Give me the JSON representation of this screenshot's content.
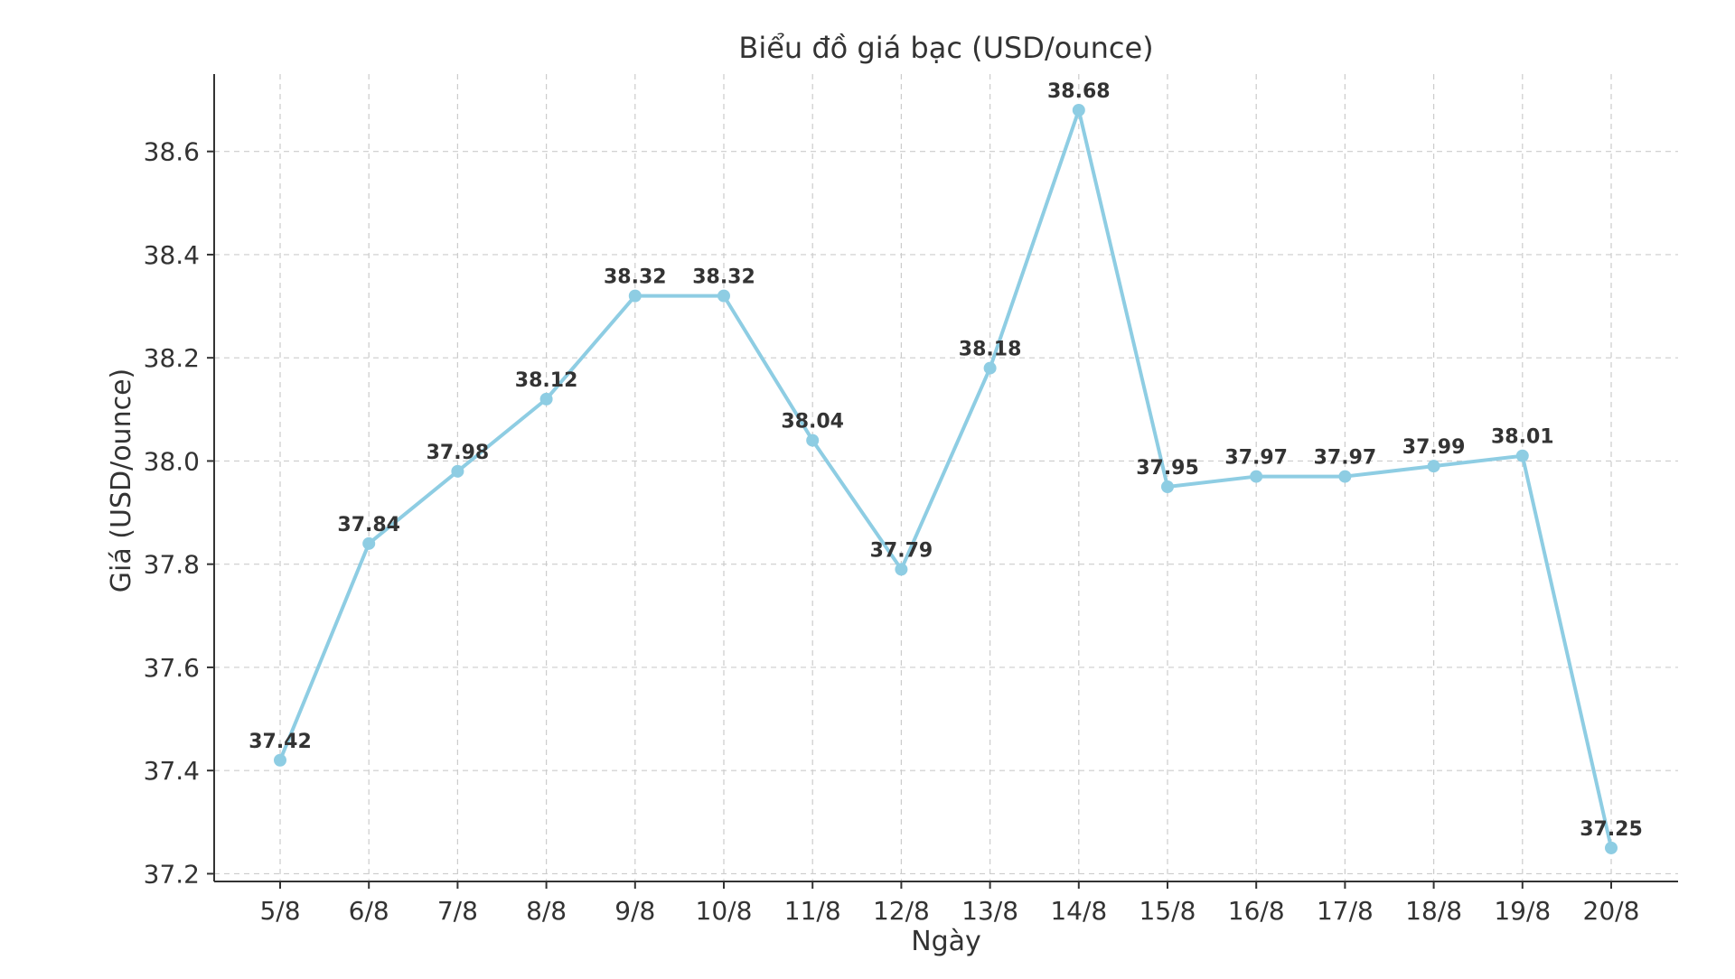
{
  "chart_data": {
    "type": "line",
    "title": "Biểu đồ giá bạc (USD/ounce)",
    "xlabel": "Ngày",
    "ylabel": "Giá (USD/ounce)",
    "categories": [
      "5/8",
      "6/8",
      "7/8",
      "8/8",
      "9/8",
      "10/8",
      "11/8",
      "12/8",
      "13/8",
      "14/8",
      "15/8",
      "16/8",
      "17/8",
      "18/8",
      "19/8",
      "20/8"
    ],
    "values": [
      37.42,
      37.84,
      37.98,
      38.12,
      38.32,
      38.32,
      38.04,
      37.79,
      38.18,
      38.68,
      37.95,
      37.97,
      37.97,
      37.99,
      38.01,
      37.25
    ],
    "data_labels": [
      "37.42",
      "37.84",
      "37.98",
      "38.12",
      "38.32",
      "38.32",
      "38.04",
      "37.79",
      "38.18",
      "38.68",
      "37.95",
      "37.97",
      "37.97",
      "37.99",
      "38.01",
      "37.25"
    ],
    "y_ticks": [
      37.2,
      37.4,
      37.6,
      37.8,
      38.0,
      38.2,
      38.4,
      38.6
    ],
    "y_tick_labels": [
      "37.2",
      "37.4",
      "37.6",
      "37.8",
      "38.0",
      "38.2",
      "38.4",
      "38.6"
    ],
    "ylim": [
      37.185,
      38.75
    ],
    "grid": true,
    "line_color": "#8ecde3",
    "marker_color": "#8ecde3"
  }
}
